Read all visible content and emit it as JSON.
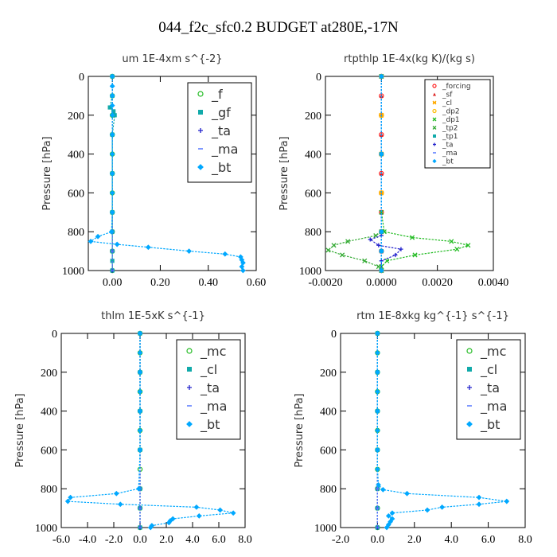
{
  "figure": {
    "title": "044_f2c_sfc0.2  BUDGET at280E,-17N"
  },
  "chart_data": [
    {
      "type": "line",
      "title": "um   1E-4xm s^{-2}",
      "ylabel": "Pressure [hPa]",
      "xlim": [
        -0.1,
        0.6
      ],
      "ylim": [
        1000,
        0
      ],
      "xticks": [
        "0.00",
        "0.20",
        "0.40",
        "0.60"
      ],
      "xtick_values": [
        0,
        0.2,
        0.4,
        0.6
      ],
      "yticks": [
        "0",
        "200",
        "400",
        "600",
        "800",
        "1000"
      ],
      "ytick_values": [
        0,
        200,
        400,
        600,
        800,
        1000
      ],
      "legend": {
        "position": "top-right",
        "size": "large"
      },
      "series": [
        {
          "name": "_f",
          "color": "#22bb22",
          "marker": "circle",
          "x": [
            0,
            0,
            0,
            0,
            0,
            0,
            0,
            0,
            0,
            0,
            0
          ],
          "y": [
            0,
            100,
            200,
            300,
            400,
            500,
            600,
            700,
            800,
            900,
            1000
          ]
        },
        {
          "name": "_gf",
          "color": "#11aaaa",
          "marker": "square",
          "x": [
            0,
            0,
            -0.01,
            0.005,
            0.01,
            0,
            0,
            0,
            0,
            0,
            0,
            0
          ],
          "y": [
            0,
            100,
            160,
            180,
            200,
            300,
            500,
            700,
            800,
            900,
            950,
            1000
          ]
        },
        {
          "name": "_ta",
          "color": "#2222cc",
          "marker": "plus",
          "x": [
            0,
            0,
            0,
            0,
            0,
            0,
            0
          ],
          "y": [
            0,
            200,
            400,
            600,
            800,
            900,
            1000
          ]
        },
        {
          "name": "_ma",
          "color": "#5577ff",
          "marker": "dash",
          "x": [
            0,
            0,
            0,
            0,
            0,
            0,
            0
          ],
          "y": [
            0,
            200,
            400,
            600,
            800,
            900,
            1000
          ]
        },
        {
          "name": "_bt",
          "color": "#00a8ff",
          "marker": "diamond",
          "x": [
            0,
            0,
            0,
            0,
            0,
            0,
            0,
            0,
            0,
            0,
            -0.003,
            -0.06,
            -0.09,
            0.02,
            0.15,
            0.32,
            0.47,
            0.535,
            0.54,
            0.545,
            0.54,
            0.545
          ],
          "y": [
            0,
            50,
            100,
            150,
            200,
            300,
            400,
            500,
            600,
            700,
            800,
            825,
            850,
            865,
            880,
            900,
            915,
            930,
            945,
            960,
            980,
            1000
          ]
        }
      ]
    },
    {
      "type": "line",
      "title": "rtpthlp   1E-4x(kg K)/(kg s)",
      "ylabel": "Pressure [hPa]",
      "xlim": [
        -0.002,
        0.004
      ],
      "ylim": [
        1000,
        0
      ],
      "xticks": [
        "-0.0020",
        "0.0000",
        "0.0020",
        "0.0040"
      ],
      "xtick_values": [
        -0.002,
        0,
        0.002,
        0.004
      ],
      "yticks": [
        "0",
        "200",
        "400",
        "600",
        "800",
        "1000"
      ],
      "ytick_values": [
        0,
        200,
        400,
        600,
        800,
        1000
      ],
      "legend": {
        "position": "top-right",
        "size": "small"
      },
      "series": [
        {
          "name": "_forcing",
          "color": "#ff2222",
          "marker": "circle",
          "x": [
            0,
            0,
            0,
            0,
            0,
            0,
            0,
            0,
            0,
            0,
            0
          ],
          "y": [
            0,
            100,
            200,
            300,
            400,
            500,
            600,
            700,
            800,
            900,
            1000
          ]
        },
        {
          "name": "_sf",
          "color": "#dd2222",
          "marker": "triangle",
          "x": [
            0,
            0,
            0,
            0,
            0,
            0,
            0,
            0,
            0,
            0,
            0
          ],
          "y": [
            0,
            100,
            200,
            300,
            400,
            500,
            600,
            700,
            800,
            900,
            1000
          ]
        },
        {
          "name": "_cl",
          "color": "#ffaa00",
          "marker": "star",
          "x": [
            0,
            0,
            0,
            0,
            0,
            0
          ],
          "y": [
            0,
            200,
            400,
            600,
            800,
            1000
          ]
        },
        {
          "name": "_dp2",
          "color": "#ffbb00",
          "marker": "circle",
          "x": [
            0,
            0,
            0,
            0,
            0,
            0
          ],
          "y": [
            0,
            200,
            400,
            600,
            800,
            1000
          ]
        },
        {
          "name": "_dp1",
          "color": "#22bb22",
          "marker": "x",
          "x": [
            0,
            0,
            0.0001,
            0.0011,
            0.0025,
            0.0031,
            0.0027,
            0.0012,
            0.0002,
            0,
            0
          ],
          "y": [
            0,
            700,
            800,
            830,
            850,
            870,
            890,
            920,
            950,
            980,
            1000
          ]
        },
        {
          "name": "_tp2",
          "color": "#33aa33",
          "marker": "x",
          "x": [
            0,
            0,
            -0.0002,
            -0.0012,
            -0.0017,
            -0.0019,
            -0.0014,
            -0.0006,
            -0.0001,
            0
          ],
          "y": [
            0,
            800,
            820,
            850,
            870,
            895,
            920,
            950,
            980,
            1000
          ]
        },
        {
          "name": "_tp1",
          "color": "#11aaaa",
          "marker": "square",
          "x": [
            0,
            0,
            0,
            0,
            0
          ],
          "y": [
            0,
            400,
            800,
            900,
            1000
          ]
        },
        {
          "name": "_ta",
          "color": "#2222cc",
          "marker": "plus",
          "x": [
            0,
            0,
            -0.0004,
            -0.0001,
            0.0007,
            0.0005,
            0,
            0
          ],
          "y": [
            0,
            820,
            840,
            870,
            890,
            920,
            950,
            1000
          ]
        },
        {
          "name": "_ma",
          "color": "#5577ff",
          "marker": "dash",
          "x": [
            0,
            0,
            0,
            0,
            0
          ],
          "y": [
            0,
            400,
            800,
            900,
            1000
          ]
        },
        {
          "name": "_bt",
          "color": "#00a8ff",
          "marker": "diamond",
          "x": [
            0,
            0,
            0,
            0,
            0
          ],
          "y": [
            0,
            400,
            800,
            900,
            1000
          ]
        }
      ]
    },
    {
      "type": "line",
      "title": "thlm   1E-5xK  s^{-1}",
      "ylabel": "Pressure [hPa]",
      "xlim": [
        -6,
        8
      ],
      "ylim": [
        1000,
        0
      ],
      "xticks": [
        "-6.0",
        "-4.0",
        "-2.0",
        "0.0",
        "2.0",
        "4.0",
        "6.0",
        "8.0"
      ],
      "xtick_values": [
        -6,
        -4,
        -2,
        0,
        2,
        4,
        6,
        8
      ],
      "yticks": [
        "0",
        "200",
        "400",
        "600",
        "800",
        "1000"
      ],
      "ytick_values": [
        0,
        200,
        400,
        600,
        800,
        1000
      ],
      "legend": {
        "position": "top-right",
        "size": "large"
      },
      "series": [
        {
          "name": "_mc",
          "color": "#22bb22",
          "marker": "circle",
          "x": [
            0,
            0,
            0,
            0,
            0,
            0,
            0,
            0,
            0,
            0,
            0
          ],
          "y": [
            0,
            100,
            200,
            300,
            400,
            500,
            600,
            700,
            800,
            900,
            1000
          ]
        },
        {
          "name": "_cl",
          "color": "#11aaaa",
          "marker": "square",
          "x": [
            0,
            0,
            0,
            0,
            0,
            0,
            0
          ],
          "y": [
            0,
            200,
            400,
            600,
            800,
            900,
            1000
          ]
        },
        {
          "name": "_ta",
          "color": "#2222cc",
          "marker": "plus",
          "x": [
            0,
            0,
            0,
            0,
            0,
            0,
            0
          ],
          "y": [
            0,
            200,
            400,
            600,
            800,
            900,
            1000
          ]
        },
        {
          "name": "_ma",
          "color": "#5577ff",
          "marker": "dash",
          "x": [
            0,
            0,
            0,
            0,
            0,
            0,
            0
          ],
          "y": [
            0,
            200,
            400,
            600,
            800,
            900,
            1000
          ]
        },
        {
          "name": "_bt",
          "color": "#00a8ff",
          "marker": "diamond",
          "x": [
            0,
            0,
            0,
            0,
            0,
            0,
            0,
            -0.1,
            -1.8,
            -5.3,
            -5.5,
            -1.5,
            4.3,
            6.1,
            7.1,
            4.5,
            2.5,
            2.3,
            2.2,
            0.9,
            0.8
          ],
          "y": [
            0,
            100,
            200,
            300,
            400,
            500,
            600,
            800,
            825,
            845,
            865,
            880,
            895,
            910,
            925,
            940,
            955,
            965,
            975,
            990,
            1000
          ]
        }
      ]
    },
    {
      "type": "line",
      "title": "rtm   1E-8xkg kg^{-1} s^{-1}",
      "ylabel": "Pressure [hPa]",
      "xlim": [
        -2,
        8
      ],
      "ylim": [
        1000,
        0
      ],
      "xticks": [
        "-2.0",
        "0.0",
        "2.0",
        "4.0",
        "6.0",
        "8.0"
      ],
      "xtick_values": [
        -2,
        0,
        2,
        4,
        6,
        8
      ],
      "yticks": [
        "0",
        "200",
        "400",
        "600",
        "800",
        "1000"
      ],
      "ytick_values": [
        0,
        200,
        400,
        600,
        800,
        1000
      ],
      "legend": {
        "position": "top-right",
        "size": "large"
      },
      "series": [
        {
          "name": "_mc",
          "color": "#22bb22",
          "marker": "circle",
          "x": [
            0,
            0,
            0,
            0,
            0,
            0,
            0,
            0,
            0,
            0,
            0
          ],
          "y": [
            0,
            100,
            200,
            300,
            400,
            500,
            600,
            700,
            800,
            900,
            1000
          ]
        },
        {
          "name": "_cl",
          "color": "#11aaaa",
          "marker": "square",
          "x": [
            0,
            0,
            0,
            0,
            0,
            0,
            0
          ],
          "y": [
            0,
            200,
            400,
            600,
            800,
            900,
            1000
          ]
        },
        {
          "name": "_ta",
          "color": "#2222cc",
          "marker": "plus",
          "x": [
            0,
            0,
            0,
            0,
            0,
            0,
            0
          ],
          "y": [
            0,
            200,
            400,
            600,
            800,
            900,
            1000
          ]
        },
        {
          "name": "_ma",
          "color": "#5577ff",
          "marker": "dash",
          "x": [
            0,
            0,
            0,
            0,
            0,
            0,
            0
          ],
          "y": [
            0,
            200,
            400,
            600,
            800,
            900,
            1000
          ]
        },
        {
          "name": "_bt",
          "color": "#00a8ff",
          "marker": "diamond",
          "x": [
            0,
            0,
            0,
            0,
            0,
            0,
            0,
            0,
            0.05,
            0.3,
            1.6,
            5.5,
            7.0,
            5.5,
            3.5,
            2.7,
            0.8,
            0.6,
            0.8,
            0.7,
            0.6,
            0.5
          ],
          "y": [
            0,
            100,
            200,
            300,
            400,
            500,
            600,
            700,
            780,
            805,
            825,
            845,
            865,
            880,
            895,
            910,
            925,
            940,
            955,
            970,
            985,
            1000
          ]
        }
      ]
    }
  ]
}
